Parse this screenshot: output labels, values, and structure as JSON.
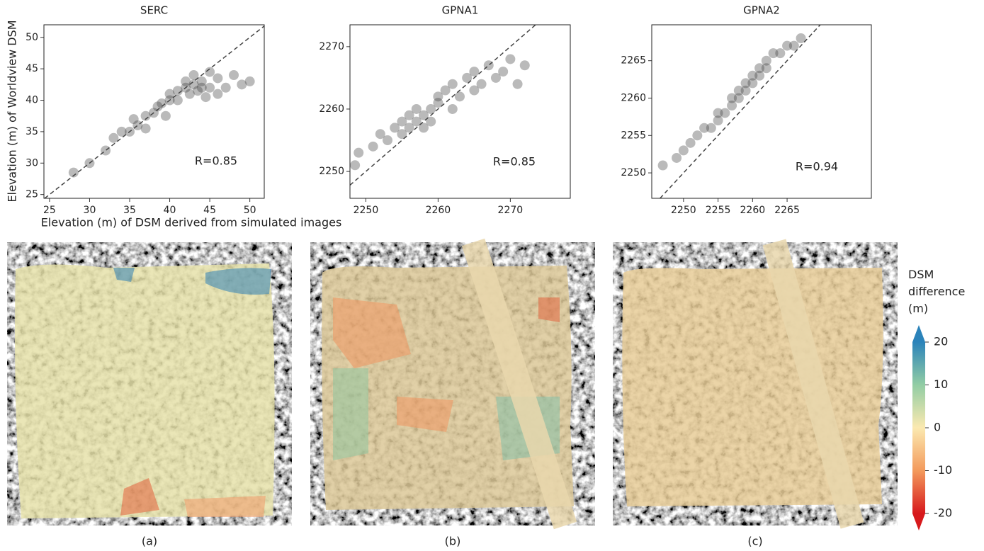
{
  "chart_data": [
    {
      "type": "scatter",
      "title": "SERC",
      "xlabel": "Elevation (m) of DSM derived from simulated images",
      "ylabel": "Elevation (m) of  Worldview DSM",
      "annotation": "R=0.85",
      "color": "#3a3a3a",
      "identity_line": true,
      "x": [
        28,
        30,
        32,
        33,
        34,
        35,
        35.5,
        36,
        37,
        37,
        38,
        38.5,
        39,
        39.5,
        40,
        40,
        41,
        41,
        42,
        42,
        42.5,
        43,
        43,
        43.5,
        44,
        44,
        44.5,
        45,
        45,
        46,
        46,
        47,
        48,
        49,
        50
      ],
      "values": [
        28.5,
        30,
        32,
        34,
        35,
        35,
        37,
        36,
        37.5,
        35.5,
        38,
        39,
        39.5,
        37.5,
        40,
        41,
        41.5,
        40,
        42,
        43,
        41,
        42.5,
        44,
        41.5,
        42,
        43,
        40.5,
        42,
        44.5,
        41,
        43.5,
        42,
        44,
        42.5,
        43
      ],
      "xlim": [
        24.3,
        51.8
      ],
      "ylim": [
        24.4,
        52
      ],
      "xticks": [
        25,
        30,
        35,
        40,
        45,
        50
      ],
      "yticks": [
        25,
        30,
        35,
        40,
        45,
        50
      ]
    },
    {
      "type": "scatter",
      "title": "GPNA1",
      "annotation": "R=0.85",
      "color": "#3a3a3a",
      "identity_line": true,
      "x": [
        2248.5,
        2249,
        2251,
        2252,
        2253,
        2254,
        2255,
        2255,
        2256,
        2256,
        2257,
        2257,
        2258,
        2258,
        2259,
        2259,
        2260,
        2260,
        2261,
        2262,
        2262,
        2263,
        2264,
        2265,
        2265,
        2266,
        2267,
        2268,
        2269,
        2270,
        2271,
        2272
      ],
      "values": [
        2251,
        2253,
        2254,
        2256,
        2255,
        2257,
        2256,
        2258,
        2257,
        2259,
        2258,
        2260,
        2259,
        2257,
        2260,
        2258,
        2261,
        2262,
        2263,
        2260,
        2264,
        2262,
        2265,
        2263,
        2266,
        2264,
        2267,
        2265,
        2266,
        2268,
        2264,
        2267
      ],
      "xlim": [
        2247.8,
        2278.3
      ],
      "ylim": [
        2245.7,
        2273.5
      ],
      "xticks": [
        2250,
        2260,
        2270
      ],
      "yticks": [
        2250,
        2260,
        2270
      ]
    },
    {
      "type": "scatter",
      "title": "GPNA2",
      "annotation": "R=0.94",
      "color": "#3a3a3a",
      "identity_line": true,
      "x": [
        2247,
        2249,
        2250,
        2251,
        2252,
        2253,
        2254,
        2255,
        2255,
        2256,
        2257,
        2257,
        2258,
        2258,
        2259,
        2259,
        2260,
        2260,
        2261,
        2261,
        2262,
        2262,
        2263,
        2264,
        2265,
        2266,
        2267
      ],
      "values": [
        2251,
        2252,
        2253,
        2254,
        2255,
        2256,
        2256,
        2257,
        2258,
        2258,
        2259,
        2260,
        2260,
        2261,
        2261,
        2262,
        2262,
        2263,
        2263,
        2264,
        2264,
        2265,
        2266,
        2266,
        2267,
        2267,
        2268
      ],
      "xlim": [
        2245.4,
        2277.2
      ],
      "ylim": [
        2246.6,
        2269.8
      ],
      "xticks": [
        2250,
        2255,
        2260,
        2265
      ],
      "yticks": [
        2250,
        2255,
        2260,
        2265
      ]
    },
    {
      "type": "colorbar",
      "title": "DSM difference (m)",
      "ylim": [
        -20,
        20
      ],
      "yticks": [
        -20,
        -10,
        0,
        10,
        20
      ],
      "colors": [
        "#d7191c",
        "#f39a5c",
        "#fbe9b0",
        "#92cda4",
        "#2b83ba"
      ]
    }
  ],
  "panels": [
    {
      "label": "(a)"
    },
    {
      "label": "(b)"
    },
    {
      "label": "(c)"
    }
  ]
}
